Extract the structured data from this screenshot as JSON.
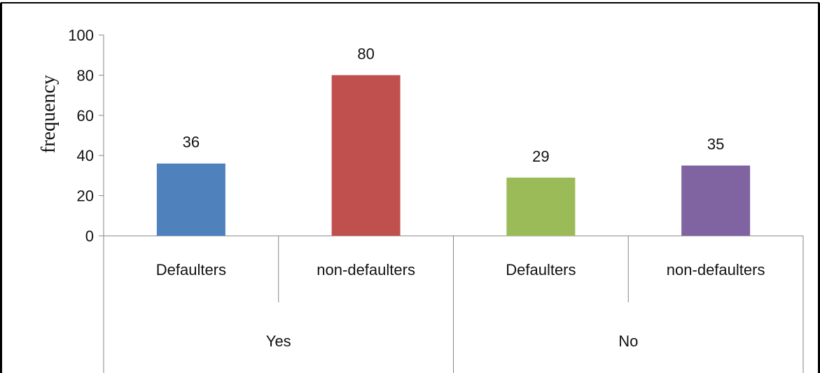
{
  "chart_data": {
    "type": "bar",
    "title": "",
    "xlabel": "",
    "ylabel": "frequency",
    "ylim": [
      0,
      100
    ],
    "yticks": [
      0,
      20,
      40,
      60,
      80,
      100
    ],
    "grid": false,
    "legend": "none",
    "groups": [
      {
        "label": "Yes",
        "categories": [
          "Defaulters",
          "non-defaulters"
        ]
      },
      {
        "label": "No",
        "categories": [
          "Defaulters",
          "non-defaulters"
        ]
      }
    ],
    "bars": [
      {
        "group": "Yes",
        "category": "Defaulters",
        "value": 36,
        "label": "36",
        "color": "#4F81BD"
      },
      {
        "group": "Yes",
        "category": "non-defaulters",
        "value": 80,
        "label": "80",
        "color": "#C0504D"
      },
      {
        "group": "No",
        "category": "Defaulters",
        "value": 29,
        "label": "29",
        "color": "#9BBB59"
      },
      {
        "group": "No",
        "category": "non-defaulters",
        "value": 35,
        "label": "35",
        "color": "#8064A2"
      }
    ]
  }
}
